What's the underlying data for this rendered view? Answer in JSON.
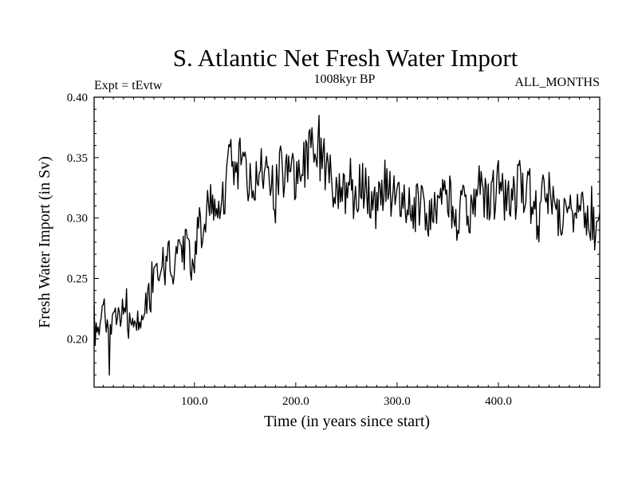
{
  "page": {
    "title": "S. Atlantic Net Fresh Water Import",
    "experiment": "Expt = tEvtw",
    "period": "1008kyr BP",
    "months": "ALL_MONTHS"
  },
  "chart_data": {
    "type": "line",
    "title": "S. Atlantic Net Fresh Water Import",
    "xlabel": "Time (in years since start)",
    "ylabel": "Fresh Water Import (in Sv)",
    "xlim": [
      1,
      500
    ],
    "ylim": [
      0.16,
      0.4
    ],
    "xticks": [
      100,
      200,
      300,
      400
    ],
    "xtick_labels": [
      "100.0",
      "200.0",
      "300.0",
      "400.0"
    ],
    "yticks": [
      0.2,
      0.25,
      0.3,
      0.35,
      0.4
    ],
    "ytick_labels": [
      "0.20",
      "0.25",
      "0.30",
      "0.35",
      "0.40"
    ],
    "grid": false,
    "series": [
      {
        "name": "Fresh Water Import",
        "color": "#000000",
        "x": [
          1,
          5,
          10,
          15,
          20,
          25,
          30,
          35,
          40,
          45,
          50,
          55,
          60,
          65,
          70,
          75,
          80,
          85,
          90,
          95,
          100,
          105,
          110,
          115,
          120,
          125,
          130,
          135,
          140,
          145,
          150,
          155,
          160,
          165,
          170,
          175,
          180,
          185,
          190,
          195,
          200,
          205,
          210,
          215,
          220,
          225,
          230,
          235,
          240,
          245,
          250,
          255,
          260,
          265,
          270,
          275,
          280,
          285,
          290,
          295,
          300,
          305,
          310,
          315,
          320,
          325,
          330,
          335,
          340,
          345,
          350,
          355,
          360,
          365,
          370,
          375,
          380,
          385,
          390,
          395,
          400,
          405,
          410,
          415,
          420,
          425,
          430,
          435,
          440,
          445,
          450,
          455,
          460,
          465,
          470,
          475,
          480,
          485,
          490,
          495,
          500
        ],
        "y": [
          0.225,
          0.21,
          0.228,
          0.205,
          0.22,
          0.215,
          0.224,
          0.21,
          0.218,
          0.212,
          0.226,
          0.235,
          0.25,
          0.262,
          0.258,
          0.27,
          0.262,
          0.266,
          0.275,
          0.265,
          0.27,
          0.29,
          0.3,
          0.31,
          0.315,
          0.3,
          0.32,
          0.35,
          0.335,
          0.345,
          0.333,
          0.338,
          0.33,
          0.327,
          0.335,
          0.34,
          0.322,
          0.345,
          0.335,
          0.34,
          0.335,
          0.338,
          0.345,
          0.355,
          0.36,
          0.348,
          0.342,
          0.335,
          0.32,
          0.318,
          0.322,
          0.32,
          0.318,
          0.325,
          0.32,
          0.315,
          0.31,
          0.322,
          0.33,
          0.318,
          0.312,
          0.305,
          0.318,
          0.312,
          0.305,
          0.315,
          0.302,
          0.298,
          0.31,
          0.315,
          0.318,
          0.305,
          0.302,
          0.312,
          0.308,
          0.3,
          0.322,
          0.325,
          0.312,
          0.318,
          0.332,
          0.32,
          0.315,
          0.31,
          0.33,
          0.325,
          0.322,
          0.308,
          0.3,
          0.318,
          0.325,
          0.315,
          0.305,
          0.3,
          0.298,
          0.305,
          0.31,
          0.298,
          0.285,
          0.292,
          0.3
        ],
        "min_point": [
          16,
          0.17
        ],
        "max_point": [
          223,
          0.385
        ]
      }
    ]
  }
}
